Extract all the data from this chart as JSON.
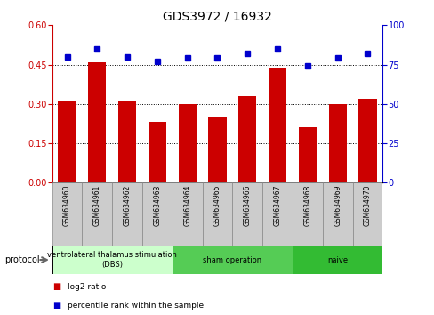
{
  "title": "GDS3972 / 16932",
  "samples": [
    "GSM634960",
    "GSM634961",
    "GSM634962",
    "GSM634963",
    "GSM634964",
    "GSM634965",
    "GSM634966",
    "GSM634967",
    "GSM634968",
    "GSM634969",
    "GSM634970"
  ],
  "log2_ratio": [
    0.31,
    0.46,
    0.31,
    0.23,
    0.3,
    0.25,
    0.33,
    0.44,
    0.21,
    0.3,
    0.32
  ],
  "percentile_rank": [
    80,
    85,
    80,
    77,
    79,
    79,
    82,
    85,
    74,
    79,
    82
  ],
  "bar_color": "#cc0000",
  "dot_color": "#0000cc",
  "ylim_left": [
    0,
    0.6
  ],
  "ylim_right": [
    0,
    100
  ],
  "yticks_left": [
    0,
    0.15,
    0.3,
    0.45,
    0.6
  ],
  "yticks_right": [
    0,
    25,
    50,
    75,
    100
  ],
  "hlines": [
    0.15,
    0.3,
    0.45
  ],
  "groups": [
    {
      "label": "ventrolateral thalamus stimulation\n(DBS)",
      "start": 0,
      "end": 4,
      "color": "#ccffcc"
    },
    {
      "label": "sham operation",
      "start": 4,
      "end": 8,
      "color": "#55cc55"
    },
    {
      "label": "naive",
      "start": 8,
      "end": 11,
      "color": "#33bb33"
    }
  ],
  "legend_bar_label": "log2 ratio",
  "legend_dot_label": "percentile rank within the sample",
  "protocol_label": "protocol",
  "left_axis_color": "#cc0000",
  "right_axis_color": "#0000cc",
  "background_color": "#ffffff",
  "tick_label_area_color": "#cccccc",
  "bar_width": 0.6
}
